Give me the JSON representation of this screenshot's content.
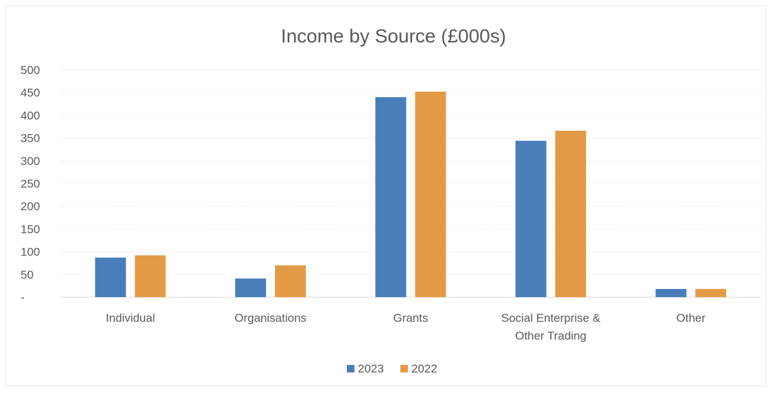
{
  "chart_data": {
    "type": "bar",
    "title": "Income by Source (£000s)",
    "xlabel": "",
    "ylabel": "",
    "categories": [
      [
        "Individual"
      ],
      [
        "Organisations"
      ],
      [
        "Grants"
      ],
      [
        "Social Enterprise &",
        "Other Trading"
      ],
      [
        "Other"
      ]
    ],
    "series": [
      {
        "name": "2023",
        "color": "#4a7ebb",
        "values": [
          87,
          41,
          440,
          344,
          18
        ]
      },
      {
        "name": "2022",
        "color": "#e39a45",
        "values": [
          92,
          70,
          452,
          366,
          18
        ]
      }
    ],
    "ylim": [
      0,
      500
    ],
    "yticks": [
      "-",
      "50",
      "100",
      "150",
      "200",
      "250",
      "300",
      "350",
      "400",
      "450",
      "500"
    ],
    "ytick_values": [
      0,
      50,
      100,
      150,
      200,
      250,
      300,
      350,
      400,
      450,
      500
    ],
    "grid": true,
    "legend_position": "bottom-center"
  }
}
